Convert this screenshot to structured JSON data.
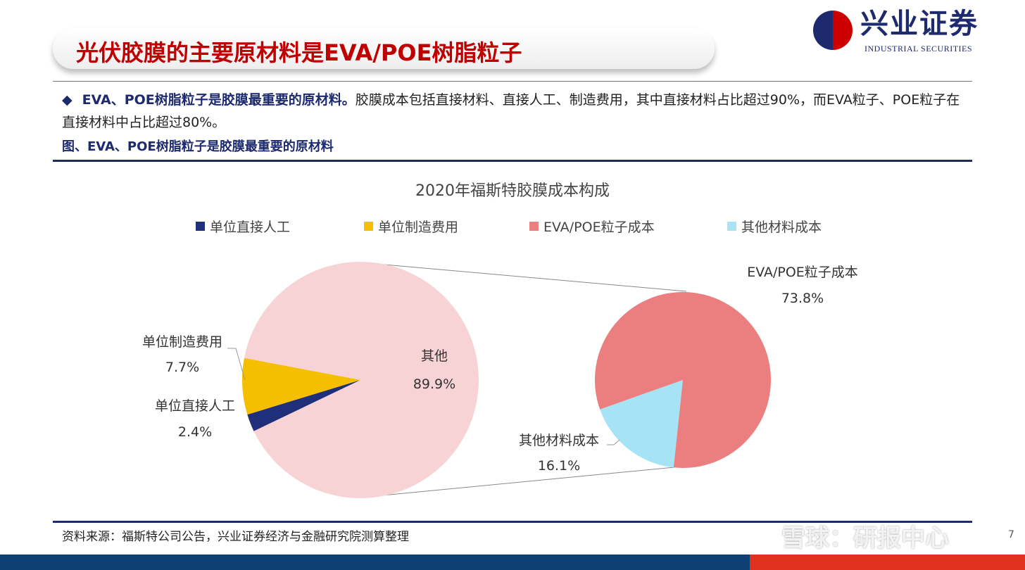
{
  "header": {
    "title": "光伏胶膜的主要原材料是EVA/POE树脂粒子",
    "logo_cn": "兴业证券",
    "logo_en": "INDUSTRIAL SECURITIES"
  },
  "bullet": {
    "bold": "EVA、POE树脂粒子是胶膜最重要的原材料。",
    "text": "胶膜成本包括直接材料、直接人工、制造费用，其中直接材料占比超过90%，而EVA粒子、POE粒子在直接材料中占比超过80%。"
  },
  "figure_title": "图、EVA、POE树脂粒子是胶膜最重要的原材料",
  "source": "资料来源：福斯特公司公告，兴业证券经济与金融研究院测算整理",
  "watermark": "雪球：研报中心",
  "page_number": "7",
  "chart_data": {
    "type": "pie",
    "title": "2020年福斯特胶膜成本构成",
    "legend": [
      "单位直接人工",
      "单位制造费用",
      "EVA/POE粒子成本",
      "其他材料成本"
    ],
    "legend_placement": "top",
    "colors": {
      "单位直接人工": "#1f2f7a",
      "单位制造费用": "#f5bf00",
      "其他": "#f8d3d6",
      "EVA/POE粒子成本": "#eb7e7e",
      "其他材料成本": "#a5e3f5"
    },
    "main_pie": [
      {
        "label": "其他",
        "value": 89.9,
        "display": "89.9%"
      },
      {
        "label": "单位制造费用",
        "value": 7.7,
        "display": "7.7%"
      },
      {
        "label": "单位直接人工",
        "value": 2.4,
        "display": "2.4%"
      }
    ],
    "sub_pie": [
      {
        "label": "EVA/POE粒子成本",
        "value": 73.8,
        "display": "73.8%"
      },
      {
        "label": "其他材料成本",
        "value": 16.1,
        "display": "16.1%"
      }
    ]
  }
}
